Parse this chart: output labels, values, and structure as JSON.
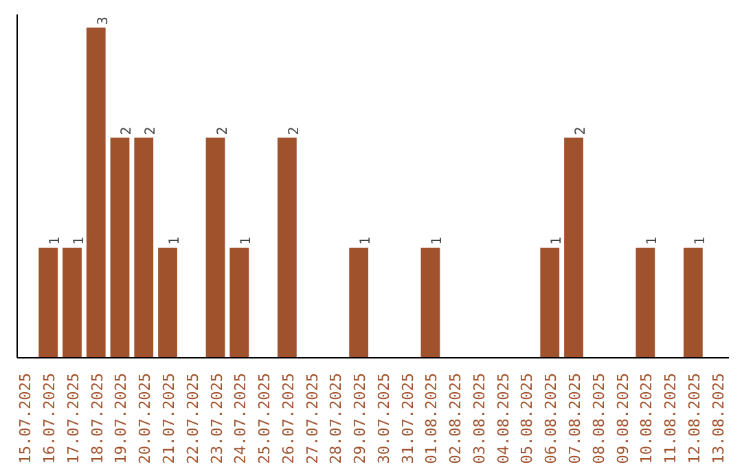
{
  "chart_data": {
    "type": "bar",
    "categories": [
      "15.07.2025",
      "16.07.2025",
      "17.07.2025",
      "18.07.2025",
      "19.07.2025",
      "20.07.2025",
      "21.07.2025",
      "22.07.2025",
      "23.07.2025",
      "24.07.2025",
      "25.07.2025",
      "26.07.2025",
      "27.07.2025",
      "28.07.2025",
      "29.07.2025",
      "30.07.2025",
      "31.07.2025",
      "01.08.2025",
      "02.08.2025",
      "03.08.2025",
      "04.08.2025",
      "05.08.2025",
      "06.08.2025",
      "07.08.2025",
      "08.08.2025",
      "09.08.2025",
      "10.08.2025",
      "11.08.2025",
      "12.08.2025",
      "13.08.2025"
    ],
    "values": [
      0,
      1,
      1,
      3,
      2,
      2,
      1,
      0,
      2,
      1,
      0,
      2,
      0,
      0,
      1,
      0,
      0,
      1,
      0,
      0,
      0,
      0,
      1,
      2,
      0,
      0,
      1,
      0,
      1,
      0
    ],
    "value_labels": [
      null,
      "1",
      "1",
      "3",
      "2",
      "2",
      "1",
      null,
      "2",
      "1",
      null,
      "2",
      null,
      null,
      "1",
      null,
      null,
      "1",
      null,
      null,
      null,
      null,
      "1",
      "2",
      null,
      null,
      "1",
      null,
      "1",
      null
    ],
    "color": "#a0522d",
    "tick_labels": "x",
    "grid": false
  }
}
